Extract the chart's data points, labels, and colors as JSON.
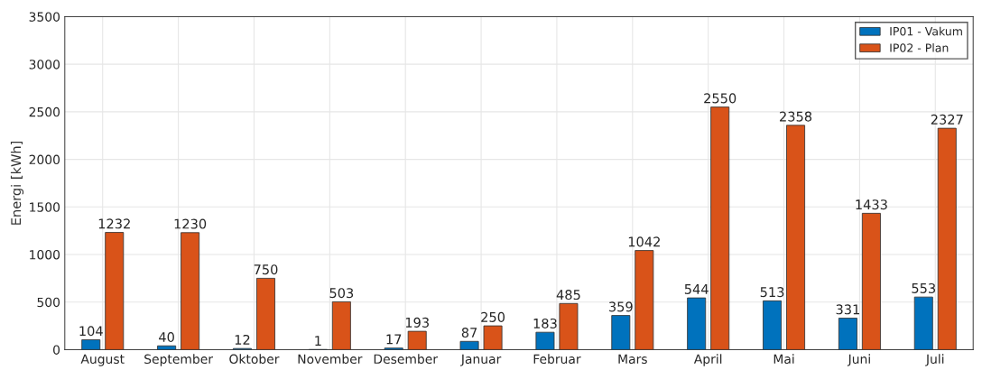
{
  "chart_data": {
    "type": "bar",
    "ylabel": "Energi [kWh]",
    "categories": [
      "August",
      "September",
      "Oktober",
      "November",
      "Desember",
      "Januar",
      "Februar",
      "Mars",
      "April",
      "Mai",
      "Juni",
      "Juli"
    ],
    "series": [
      {
        "name": "IP01 - Vakum",
        "color": "#0072bd",
        "values": [
          104,
          40,
          12,
          1,
          17,
          87,
          183,
          359,
          544,
          513,
          331,
          553
        ]
      },
      {
        "name": "IP02 - Plan",
        "color": "#d95319",
        "values": [
          1232,
          1230,
          750,
          503,
          193,
          250,
          485,
          1042,
          2550,
          2358,
          1433,
          2327
        ]
      }
    ],
    "ylim": [
      0,
      3500
    ],
    "yticks": [
      0,
      500,
      1000,
      1500,
      2000,
      2500,
      3000,
      3500
    ],
    "grid": true,
    "legend": "top right",
    "data_labels": true
  }
}
